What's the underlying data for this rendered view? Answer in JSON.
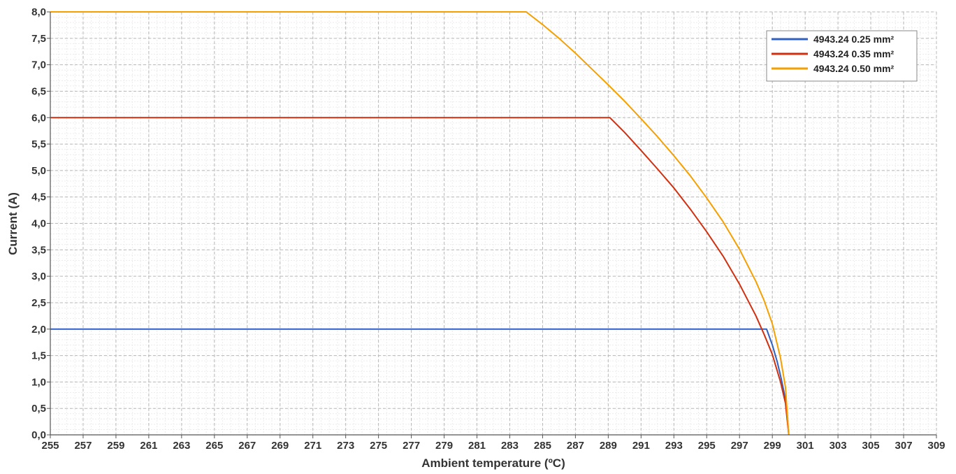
{
  "chart_data": {
    "type": "line",
    "xlabel": "Ambient temperature (ºC)",
    "ylabel": "Current (A)",
    "xlim": [
      255,
      309
    ],
    "ylim": [
      0,
      8
    ],
    "x_ticks": [
      "255",
      "257",
      "259",
      "261",
      "263",
      "265",
      "267",
      "269",
      "271",
      "273",
      "275",
      "277",
      "279",
      "281",
      "283",
      "285",
      "287",
      "289",
      "291",
      "293",
      "295",
      "297",
      "299",
      "301",
      "303",
      "305",
      "307",
      "309"
    ],
    "y_ticks": [
      "0,0",
      "0,5",
      "1,0",
      "1,5",
      "2,0",
      "2,5",
      "3,0",
      "3,5",
      "4,0",
      "4,5",
      "5,0",
      "5,5",
      "6,0",
      "6,5",
      "7,0",
      "7,5",
      "8,0"
    ],
    "grid": true,
    "legend_position": "top-right",
    "series": [
      {
        "name": "4943.24 0.25 mm²",
        "color": "#3060c0",
        "x": [
          255,
          298.65,
          299.0,
          299.3,
          299.55,
          299.75,
          299.9,
          300.0
        ],
        "y": [
          2.0,
          2.0,
          1.7,
          1.38,
          1.05,
          0.75,
          0.4,
          0.0
        ]
      },
      {
        "name": "4943.24 0.35 mm²",
        "color": "#d03010",
        "x": [
          255,
          289.1,
          290,
          291,
          292,
          293,
          294,
          295,
          296,
          297,
          298,
          298.5,
          299,
          299.5,
          299.8,
          300.0
        ],
        "y": [
          6.0,
          6.0,
          5.72,
          5.38,
          5.03,
          4.67,
          4.27,
          3.84,
          3.38,
          2.85,
          2.25,
          1.9,
          1.52,
          1.0,
          0.6,
          0.0
        ]
      },
      {
        "name": "4943.24 0.50 mm²",
        "color": "#f5a000",
        "x": [
          255,
          284.0,
          285,
          286,
          287,
          288,
          289,
          290,
          291,
          292,
          293,
          294,
          295,
          296,
          297,
          298,
          298.5,
          299,
          299.5,
          299.8,
          300.0
        ],
        "y": [
          8.0,
          8.0,
          7.76,
          7.5,
          7.22,
          6.92,
          6.62,
          6.31,
          5.98,
          5.64,
          5.28,
          4.9,
          4.48,
          4.03,
          3.51,
          2.9,
          2.54,
          2.1,
          1.45,
          0.9,
          0.0
        ]
      }
    ]
  }
}
